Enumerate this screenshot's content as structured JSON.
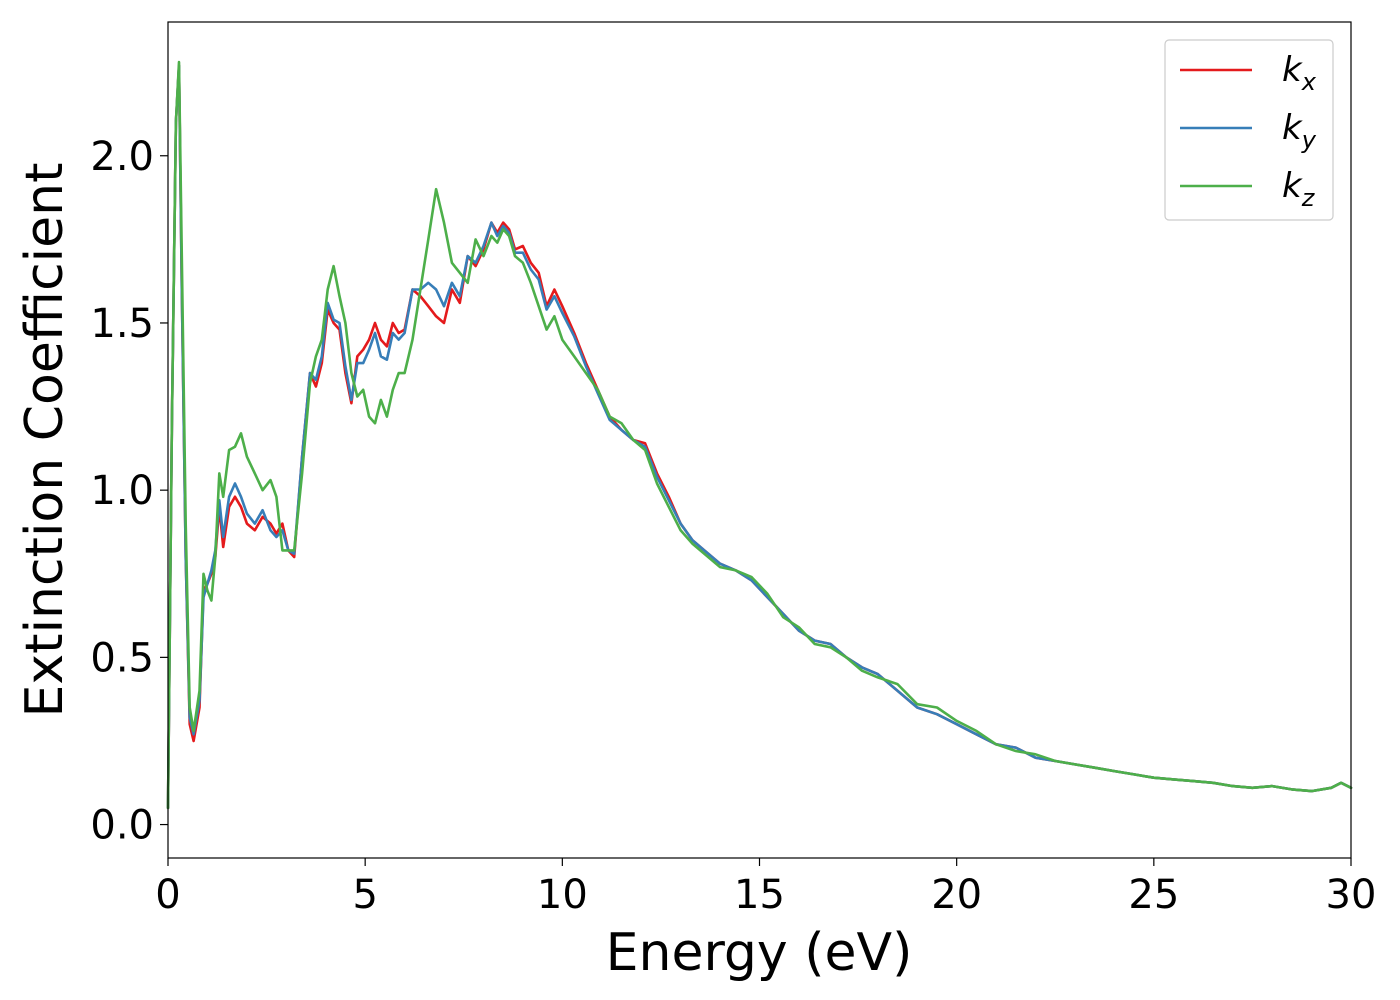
{
  "chart_data": {
    "type": "line",
    "title": "",
    "xlabel": "Energy (eV)",
    "ylabel": "Extinction Coefficient",
    "xlim": [
      0,
      30
    ],
    "ylim": [
      -0.1,
      2.4
    ],
    "xticks": [
      0,
      5,
      10,
      15,
      20,
      25,
      30
    ],
    "xtick_labels": [
      "0",
      "5",
      "10",
      "15",
      "20",
      "25",
      "30"
    ],
    "yticks": [
      0.0,
      0.5,
      1.0,
      1.5,
      2.0
    ],
    "ytick_labels": [
      "0.0",
      "0.5",
      "1.0",
      "1.5",
      "2.0"
    ],
    "grid": false,
    "legend_position": "top-right",
    "series": [
      {
        "name": "k_x",
        "label_main": "k",
        "label_sub": "x",
        "color": "#e41a1c",
        "x": [
          0,
          0.1,
          0.2,
          0.28,
          0.35,
          0.45,
          0.55,
          0.65,
          0.8,
          0.9,
          1.0,
          1.1,
          1.2,
          1.3,
          1.4,
          1.55,
          1.7,
          1.85,
          2.0,
          2.2,
          2.4,
          2.6,
          2.75,
          2.9,
          3.05,
          3.2,
          3.4,
          3.6,
          3.75,
          3.9,
          4.05,
          4.2,
          4.35,
          4.5,
          4.65,
          4.8,
          4.95,
          5.1,
          5.25,
          5.4,
          5.55,
          5.7,
          5.85,
          6.0,
          6.2,
          6.4,
          6.6,
          6.8,
          7.0,
          7.2,
          7.4,
          7.6,
          7.8,
          8.0,
          8.2,
          8.35,
          8.5,
          8.65,
          8.8,
          9.0,
          9.2,
          9.4,
          9.6,
          9.8,
          10.0,
          10.3,
          10.6,
          10.9,
          11.2,
          11.5,
          11.8,
          12.1,
          12.4,
          12.7,
          13.0,
          13.3,
          13.6,
          14.0,
          14.4,
          14.8,
          15.2,
          15.6,
          16.0,
          16.4,
          16.8,
          17.2,
          17.6,
          18.0,
          18.5,
          19.0,
          19.5,
          20.0,
          20.5,
          21.0,
          21.5,
          22.0,
          22.5,
          23.0,
          23.5,
          24.0,
          24.5,
          25.0,
          25.5,
          26.0,
          26.5,
          27.0,
          27.5,
          28.0,
          28.5,
          29.0,
          29.5,
          29.75,
          30.0
        ],
        "y": [
          0.05,
          1.2,
          2.1,
          2.27,
          1.6,
          0.8,
          0.3,
          0.25,
          0.35,
          0.7,
          0.72,
          0.75,
          0.8,
          0.95,
          0.83,
          0.95,
          0.98,
          0.95,
          0.9,
          0.88,
          0.92,
          0.9,
          0.87,
          0.9,
          0.82,
          0.8,
          1.1,
          1.35,
          1.31,
          1.38,
          1.54,
          1.5,
          1.48,
          1.35,
          1.26,
          1.4,
          1.42,
          1.45,
          1.5,
          1.45,
          1.43,
          1.5,
          1.47,
          1.48,
          1.6,
          1.58,
          1.55,
          1.52,
          1.5,
          1.6,
          1.56,
          1.7,
          1.67,
          1.72,
          1.8,
          1.77,
          1.8,
          1.78,
          1.72,
          1.73,
          1.68,
          1.65,
          1.55,
          1.6,
          1.55,
          1.47,
          1.38,
          1.3,
          1.22,
          1.18,
          1.15,
          1.14,
          1.05,
          0.98,
          0.9,
          0.85,
          0.82,
          0.78,
          0.76,
          0.73,
          0.68,
          0.63,
          0.58,
          0.55,
          0.54,
          0.5,
          0.47,
          0.45,
          0.4,
          0.35,
          0.33,
          0.3,
          0.27,
          0.24,
          0.23,
          0.2,
          0.19,
          0.18,
          0.17,
          0.16,
          0.15,
          0.14,
          0.135,
          0.13,
          0.125,
          0.115,
          0.11,
          0.115,
          0.105,
          0.1,
          0.11,
          0.125,
          0.11
        ]
      },
      {
        "name": "k_y",
        "label_main": "k",
        "label_sub": "y",
        "color": "#377eb8",
        "x": [
          0,
          0.1,
          0.2,
          0.28,
          0.35,
          0.45,
          0.55,
          0.65,
          0.8,
          0.9,
          1.0,
          1.1,
          1.2,
          1.3,
          1.4,
          1.55,
          1.7,
          1.85,
          2.0,
          2.2,
          2.4,
          2.6,
          2.75,
          2.9,
          3.05,
          3.2,
          3.4,
          3.6,
          3.75,
          3.9,
          4.05,
          4.2,
          4.35,
          4.5,
          4.65,
          4.8,
          4.95,
          5.1,
          5.25,
          5.4,
          5.55,
          5.7,
          5.85,
          6.0,
          6.2,
          6.4,
          6.6,
          6.8,
          7.0,
          7.2,
          7.4,
          7.6,
          7.8,
          8.0,
          8.2,
          8.35,
          8.5,
          8.65,
          8.8,
          9.0,
          9.2,
          9.4,
          9.6,
          9.8,
          10.0,
          10.3,
          10.6,
          10.9,
          11.2,
          11.5,
          11.8,
          12.1,
          12.4,
          12.7,
          13.0,
          13.3,
          13.6,
          14.0,
          14.4,
          14.8,
          15.2,
          15.6,
          16.0,
          16.4,
          16.8,
          17.2,
          17.6,
          18.0,
          18.5,
          19.0,
          19.5,
          20.0,
          20.5,
          21.0,
          21.5,
          22.0,
          22.5,
          23.0,
          23.5,
          24.0,
          24.5,
          25.0,
          25.5,
          26.0,
          26.5,
          27.0,
          27.5,
          28.0,
          28.5,
          29.0,
          29.5,
          29.75,
          30.0
        ],
        "y": [
          0.05,
          1.2,
          2.1,
          2.27,
          1.6,
          0.8,
          0.32,
          0.27,
          0.37,
          0.68,
          0.72,
          0.76,
          0.82,
          0.97,
          0.86,
          0.98,
          1.02,
          0.98,
          0.93,
          0.9,
          0.94,
          0.88,
          0.86,
          0.88,
          0.82,
          0.81,
          1.1,
          1.35,
          1.33,
          1.4,
          1.56,
          1.51,
          1.5,
          1.37,
          1.27,
          1.38,
          1.38,
          1.42,
          1.47,
          1.4,
          1.39,
          1.47,
          1.45,
          1.47,
          1.6,
          1.6,
          1.62,
          1.6,
          1.55,
          1.62,
          1.58,
          1.7,
          1.68,
          1.73,
          1.8,
          1.76,
          1.79,
          1.77,
          1.71,
          1.71,
          1.66,
          1.63,
          1.54,
          1.58,
          1.53,
          1.46,
          1.37,
          1.29,
          1.21,
          1.18,
          1.15,
          1.13,
          1.04,
          0.97,
          0.9,
          0.85,
          0.82,
          0.78,
          0.76,
          0.73,
          0.68,
          0.63,
          0.58,
          0.55,
          0.54,
          0.5,
          0.47,
          0.45,
          0.4,
          0.35,
          0.33,
          0.3,
          0.27,
          0.24,
          0.23,
          0.2,
          0.19,
          0.18,
          0.17,
          0.16,
          0.15,
          0.14,
          0.135,
          0.13,
          0.125,
          0.115,
          0.11,
          0.115,
          0.105,
          0.1,
          0.11,
          0.125,
          0.11
        ]
      },
      {
        "name": "k_z",
        "label_main": "k",
        "label_sub": "z",
        "color": "#4daf4a",
        "x": [
          0,
          0.1,
          0.2,
          0.28,
          0.35,
          0.45,
          0.55,
          0.65,
          0.8,
          0.9,
          1.0,
          1.1,
          1.2,
          1.3,
          1.4,
          1.55,
          1.7,
          1.85,
          2.0,
          2.2,
          2.4,
          2.6,
          2.75,
          2.9,
          3.05,
          3.2,
          3.4,
          3.6,
          3.75,
          3.9,
          4.05,
          4.2,
          4.35,
          4.5,
          4.65,
          4.8,
          4.95,
          5.1,
          5.25,
          5.4,
          5.55,
          5.7,
          5.85,
          6.0,
          6.2,
          6.4,
          6.6,
          6.8,
          7.0,
          7.2,
          7.4,
          7.6,
          7.8,
          8.0,
          8.2,
          8.35,
          8.5,
          8.65,
          8.8,
          9.0,
          9.2,
          9.4,
          9.6,
          9.8,
          10.0,
          10.3,
          10.6,
          10.9,
          11.2,
          11.5,
          11.8,
          12.1,
          12.4,
          12.7,
          13.0,
          13.3,
          13.6,
          14.0,
          14.4,
          14.8,
          15.2,
          15.6,
          16.0,
          16.4,
          16.8,
          17.2,
          17.6,
          18.0,
          18.5,
          19.0,
          19.5,
          20.0,
          20.5,
          21.0,
          21.5,
          22.0,
          22.5,
          23.0,
          23.5,
          24.0,
          24.5,
          25.0,
          25.5,
          26.0,
          26.5,
          27.0,
          27.5,
          28.0,
          28.5,
          29.0,
          29.5,
          29.75,
          30.0
        ],
        "y": [
          0.05,
          1.2,
          2.1,
          2.28,
          1.7,
          0.9,
          0.35,
          0.28,
          0.4,
          0.75,
          0.7,
          0.67,
          0.8,
          1.05,
          0.98,
          1.12,
          1.13,
          1.17,
          1.1,
          1.05,
          1.0,
          1.03,
          0.98,
          0.82,
          0.82,
          0.82,
          1.05,
          1.32,
          1.4,
          1.45,
          1.6,
          1.67,
          1.58,
          1.5,
          1.35,
          1.28,
          1.3,
          1.22,
          1.2,
          1.27,
          1.22,
          1.3,
          1.35,
          1.35,
          1.45,
          1.6,
          1.75,
          1.9,
          1.8,
          1.68,
          1.65,
          1.62,
          1.75,
          1.7,
          1.76,
          1.74,
          1.78,
          1.76,
          1.7,
          1.68,
          1.62,
          1.55,
          1.48,
          1.52,
          1.45,
          1.4,
          1.35,
          1.3,
          1.22,
          1.2,
          1.15,
          1.12,
          1.02,
          0.95,
          0.88,
          0.84,
          0.81,
          0.77,
          0.76,
          0.74,
          0.69,
          0.62,
          0.59,
          0.54,
          0.53,
          0.5,
          0.46,
          0.44,
          0.42,
          0.36,
          0.35,
          0.31,
          0.28,
          0.24,
          0.22,
          0.21,
          0.19,
          0.18,
          0.17,
          0.16,
          0.15,
          0.14,
          0.135,
          0.13,
          0.125,
          0.115,
          0.11,
          0.115,
          0.105,
          0.1,
          0.11,
          0.125,
          0.11
        ]
      }
    ]
  }
}
